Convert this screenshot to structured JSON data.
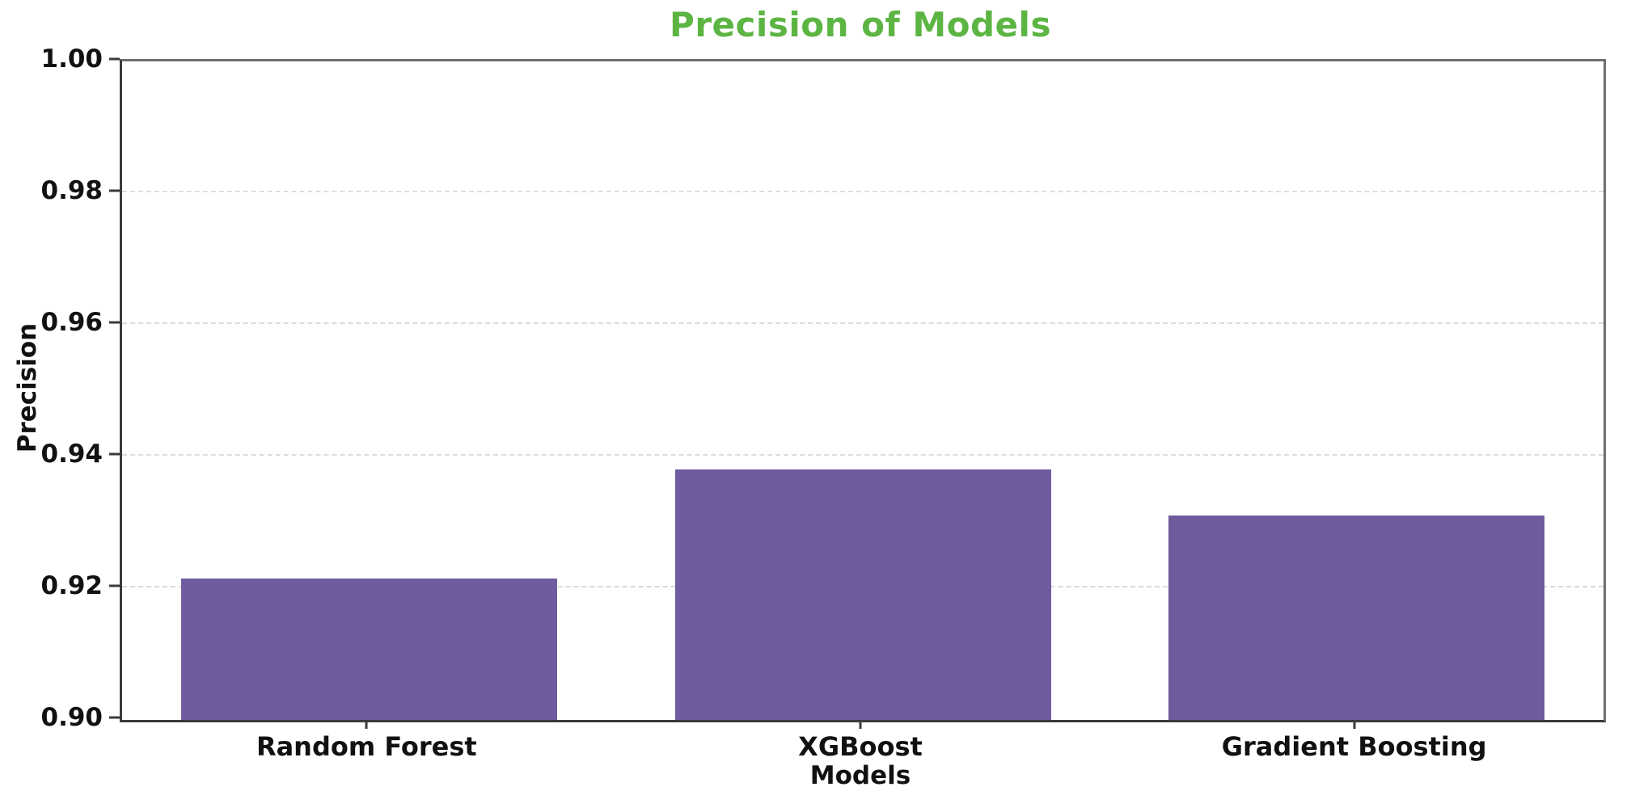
{
  "chart_data": {
    "type": "bar",
    "title": "Precision of Models",
    "categories": [
      "Random Forest",
      "XGBoost",
      "Gradient Boosting"
    ],
    "values": [
      0.9215,
      0.938,
      0.931
    ],
    "xlabel": "Models",
    "ylabel": "Precision",
    "ylim": [
      0.9,
      1.0
    ],
    "yticks": [
      {
        "label": "1.00",
        "value": 1.0
      },
      {
        "label": "0.98",
        "value": 0.98
      },
      {
        "label": "0.96",
        "value": 0.96
      },
      {
        "label": "0.94",
        "value": 0.94
      },
      {
        "label": "0.92",
        "value": 0.92
      },
      {
        "label": "0.90",
        "value": 0.9
      }
    ],
    "grid": "horizontal-dashed",
    "legend": "none",
    "colors": {
      "title": "#5cb543",
      "bar": "#6e5c9e",
      "grid": "#dcdcdc",
      "tick_text": "#111111"
    }
  }
}
